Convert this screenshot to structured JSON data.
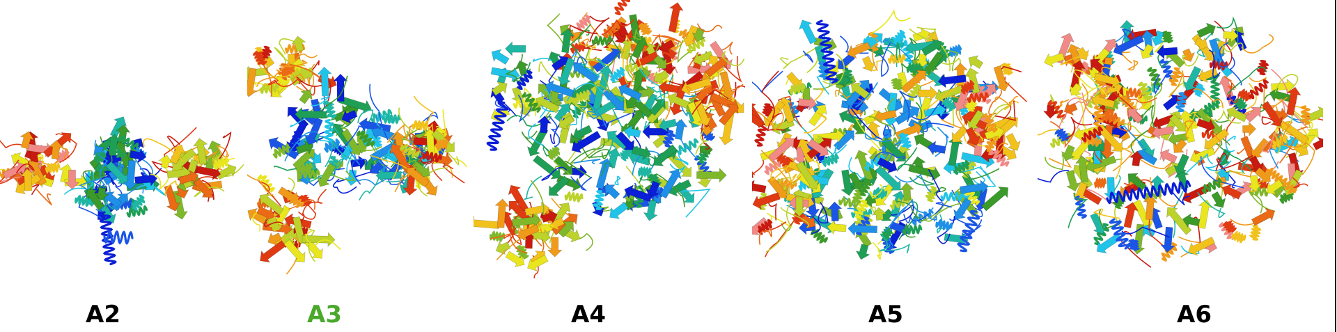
{
  "panels": [
    {
      "label": "A2",
      "color": "#000000"
    },
    {
      "label": "A3",
      "color": "#4aa82b"
    },
    {
      "label": "A4",
      "color": "#000000"
    },
    {
      "label": "A5",
      "color": "#000000"
    },
    {
      "label": "A6",
      "color": "#000000"
    }
  ]
}
